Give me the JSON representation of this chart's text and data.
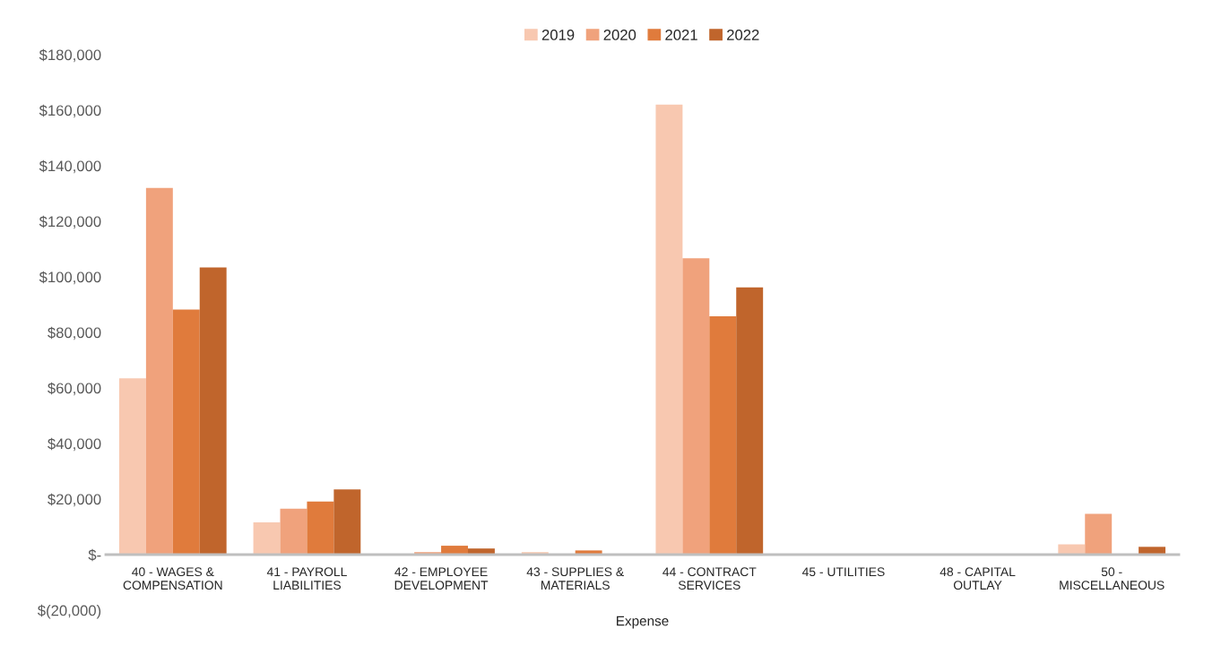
{
  "chart_data": {
    "type": "bar",
    "xlabel": "Expense",
    "categories": [
      "40 - WAGES &\nCOMPENSATION",
      "41 - PAYROLL\nLIABILITIES",
      "42 - EMPLOYEE\nDEVELOPMENT",
      "43 - SUPPLIES &\nMATERIALS",
      "44 - CONTRACT\nSERVICES",
      "45 - UTILITIES",
      "48 - CAPITAL\nOUTLAY",
      "50 -\nMISCELLANEOUS"
    ],
    "series": [
      {
        "name": "2019",
        "color": "#f8c8b0",
        "values": [
          63500,
          11600,
          0,
          900,
          162000,
          null,
          0,
          3700
        ]
      },
      {
        "name": "2020",
        "color": "#f0a27c",
        "values": [
          132000,
          16500,
          900,
          0,
          106700,
          null,
          0,
          14700
        ]
      },
      {
        "name": "2021",
        "color": "#e07b3c",
        "values": [
          88200,
          19100,
          3200,
          1500,
          85800,
          null,
          0,
          0
        ]
      },
      {
        "name": "2022",
        "color": "#c0652c",
        "values": [
          103400,
          23500,
          2200,
          0,
          96200,
          null,
          0,
          2800
        ]
      }
    ],
    "ylim": [
      -20000,
      180000
    ],
    "yticks": [
      {
        "value": -20000,
        "label": "$(20,000)"
      },
      {
        "value": 0,
        "label": "$-"
      },
      {
        "value": 20000,
        "label": "$20,000"
      },
      {
        "value": 40000,
        "label": "$40,000"
      },
      {
        "value": 60000,
        "label": "$60,000"
      },
      {
        "value": 80000,
        "label": "$80,000"
      },
      {
        "value": 100000,
        "label": "$100,000"
      },
      {
        "value": 120000,
        "label": "$120,000"
      },
      {
        "value": 140000,
        "label": "$140,000"
      },
      {
        "value": 160000,
        "label": "$160,000"
      },
      {
        "value": 180000,
        "label": "$180,000"
      }
    ],
    "grid": false,
    "legend": "top"
  }
}
